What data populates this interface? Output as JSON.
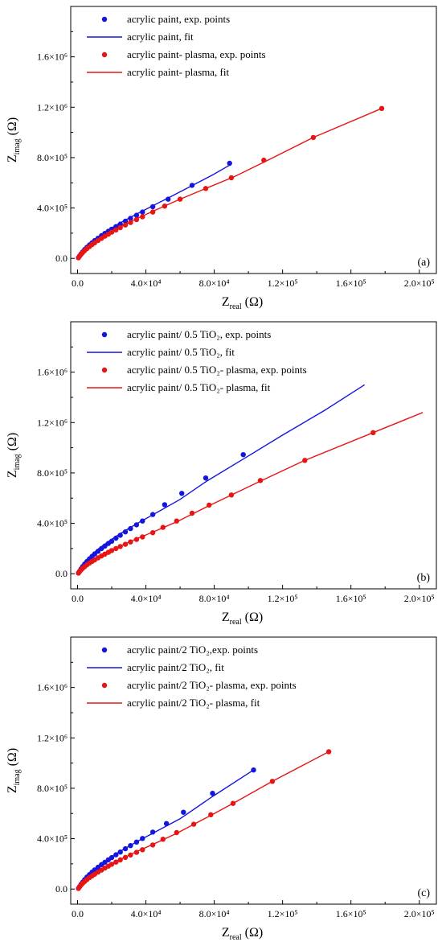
{
  "chart_data": [
    {
      "type": "scatter",
      "panel_label": "(a)",
      "xlabel": {
        "main": "Z",
        "sub": "real",
        "unit": " (Ω)"
      },
      "ylabel": {
        "main": "Z",
        "sub": "imag",
        "unit": " (Ω)"
      },
      "xlim": [
        -4000,
        210000
      ],
      "ylim": [
        -120000,
        2000000
      ],
      "x_ticks": [
        {
          "v": 0,
          "label": "0.0"
        },
        {
          "v": 40000,
          "label": "4.0×10⁴"
        },
        {
          "v": 80000,
          "label": "8.0×10⁴"
        },
        {
          "v": 120000,
          "label": "1.2×10⁵"
        },
        {
          "v": 160000,
          "label": "1.6×10⁵"
        },
        {
          "v": 200000,
          "label": "2.0×10⁵"
        }
      ],
      "y_ticks": [
        {
          "v": 0,
          "label": "0.0"
        },
        {
          "v": 400000,
          "label": "4.0×10⁵"
        },
        {
          "v": 800000,
          "label": "8.0×10⁵"
        },
        {
          "v": 1200000,
          "label": "1.2×10⁶"
        },
        {
          "v": 1600000,
          "label": "1.6×10⁶"
        }
      ],
      "grid": false,
      "legend_position": "top-left",
      "series": [
        {
          "name": "acrylic paint, exp. points",
          "kind": "points",
          "color": "#1515e0",
          "x": [
            500,
            1200,
            2000,
            3000,
            4200,
            5500,
            7000,
            8500,
            10000,
            12000,
            14000,
            16000,
            18000,
            20000,
            22500,
            25000,
            28000,
            31000,
            34500,
            38000,
            44000,
            53000,
            67000,
            89000
          ],
          "y": [
            5000,
            20000,
            35000,
            52000,
            70000,
            88000,
            107000,
            124000,
            141000,
            160000,
            180000,
            198000,
            215000,
            232000,
            252000,
            272000,
            295000,
            318000,
            342000,
            368000,
            410000,
            470000,
            580000,
            755000
          ]
        },
        {
          "name": "acrylic paint, fit",
          "kind": "line",
          "color": "#1515e0",
          "x": [
            0,
            500,
            1500,
            3000,
            5000,
            8000,
            12000,
            18000,
            25000,
            35000,
            45000,
            55000,
            67000,
            79000,
            89000
          ],
          "y": [
            0,
            12000,
            35000,
            62000,
            92000,
            128000,
            170000,
            225000,
            282000,
            355000,
            425000,
            493000,
            578000,
            662000,
            740000
          ]
        },
        {
          "name": "acrylic paint- plasma, exp. points",
          "kind": "points",
          "color": "#e81515",
          "x": [
            500,
            1200,
            2000,
            3000,
            4200,
            5500,
            7000,
            8500,
            10000,
            12000,
            14000,
            16000,
            18000,
            20000,
            22500,
            25000,
            28000,
            31000,
            34500,
            38000,
            44000,
            51000,
            60000,
            75000,
            90000,
            109000,
            138000,
            178000
          ],
          "y": [
            5000,
            18000,
            32000,
            46000,
            62000,
            78000,
            94000,
            110000,
            124000,
            142000,
            159000,
            176000,
            192000,
            208000,
            226000,
            244000,
            265000,
            285000,
            308000,
            330000,
            368000,
            415000,
            470000,
            555000,
            640000,
            780000,
            960000,
            1190000
          ]
        },
        {
          "name": "acrylic paint- plasma, fit",
          "kind": "line",
          "color": "#e81515",
          "x": [
            0,
            500,
            1500,
            3000,
            5000,
            8000,
            12000,
            18000,
            25000,
            35000,
            45000,
            60000,
            75000,
            92000,
            110000,
            138000,
            178000
          ],
          "y": [
            0,
            10000,
            29000,
            52000,
            78000,
            110000,
            147000,
            198000,
            250000,
            318000,
            380000,
            470000,
            555000,
            650000,
            770000,
            960000,
            1190000
          ]
        }
      ]
    },
    {
      "type": "scatter",
      "panel_label": "(b)",
      "xlabel": {
        "main": "Z",
        "sub": "real",
        "unit": " (Ω)"
      },
      "ylabel": {
        "main": "Z",
        "sub": "imag",
        "unit": " (Ω)"
      },
      "xlim": [
        -4000,
        210000
      ],
      "ylim": [
        -120000,
        2000000
      ],
      "x_ticks": [
        {
          "v": 0,
          "label": "0.0"
        },
        {
          "v": 40000,
          "label": "4.0×10⁴"
        },
        {
          "v": 80000,
          "label": "8.0×10⁴"
        },
        {
          "v": 120000,
          "label": "1.2×10⁵"
        },
        {
          "v": 160000,
          "label": "1.6×10⁵"
        },
        {
          "v": 200000,
          "label": "2.0×10⁵"
        }
      ],
      "y_ticks": [
        {
          "v": 0,
          "label": "0.0"
        },
        {
          "v": 400000,
          "label": "4.0×10⁵"
        },
        {
          "v": 800000,
          "label": "8.0×10⁵"
        },
        {
          "v": 1200000,
          "label": "1.2×10⁶"
        },
        {
          "v": 1600000,
          "label": "1.6×10⁶"
        }
      ],
      "grid": false,
      "legend_position": "top-left",
      "series": [
        {
          "name": "acrylic paint/ 0.5 TiO₂, exp. points",
          "kind": "points",
          "color": "#1515e0",
          "x": [
            500,
            1200,
            2000,
            3000,
            4200,
            5500,
            7000,
            8500,
            10000,
            12000,
            14000,
            16000,
            18000,
            20000,
            22500,
            25000,
            28000,
            31000,
            34500,
            38000,
            44000,
            51000,
            61000,
            75000,
            97000
          ],
          "y": [
            5000,
            20000,
            38000,
            57000,
            77000,
            97000,
            118000,
            138000,
            157000,
            178000,
            200000,
            220000,
            240000,
            258000,
            282000,
            305000,
            332000,
            358000,
            388000,
            418000,
            470000,
            548000,
            638000,
            760000,
            945000
          ]
        },
        {
          "name": "acrylic paint/ 0.5 TiO₂, fit",
          "kind": "line",
          "color": "#1515e0",
          "x": [
            0,
            500,
            1500,
            3000,
            5000,
            8000,
            12000,
            18000,
            25000,
            35000,
            45000,
            60000,
            75000,
            97000,
            120000,
            145000,
            168000
          ],
          "y": [
            0,
            15000,
            42000,
            72000,
            106000,
            147000,
            195000,
            255000,
            318000,
            400000,
            475000,
            590000,
            730000,
            910000,
            1100000,
            1300000,
            1500000
          ]
        },
        {
          "name": "acrylic paint/ 0.5 TiO₂- plasma, exp. points",
          "kind": "points",
          "color": "#e81515",
          "x": [
            500,
            1200,
            2000,
            3000,
            4200,
            5500,
            7000,
            8500,
            10000,
            12000,
            14000,
            16000,
            18000,
            20000,
            22500,
            25000,
            28000,
            31000,
            34500,
            38000,
            44000,
            50000,
            58000,
            67000,
            77000,
            90000,
            107000,
            133000,
            173000
          ],
          "y": [
            5000,
            17000,
            30000,
            43000,
            57000,
            71000,
            85000,
            98000,
            110000,
            126000,
            141000,
            156000,
            170000,
            184000,
            200000,
            216000,
            234000,
            252000,
            272000,
            292000,
            326000,
            368000,
            418000,
            480000,
            545000,
            625000,
            740000,
            900000,
            1120000
          ]
        },
        {
          "name": "acrylic paint/ 0.5 TiO₂- plasma, fit",
          "kind": "line",
          "color": "#e81515",
          "x": [
            0,
            500,
            1500,
            3000,
            5000,
            8000,
            12000,
            18000,
            25000,
            35000,
            45000,
            58000,
            77000,
            107000,
            133000,
            173000,
            202000
          ],
          "y": [
            0,
            10000,
            27000,
            48000,
            70000,
            98000,
            130000,
            174000,
            220000,
            280000,
            336000,
            412000,
            540000,
            735000,
            900000,
            1120000,
            1280000
          ]
        }
      ]
    },
    {
      "type": "scatter",
      "panel_label": "(c)",
      "xlabel": {
        "main": "Z",
        "sub": "real",
        "unit": " (Ω)"
      },
      "ylabel": {
        "main": "Z",
        "sub": "imag",
        "unit": " (Ω)"
      },
      "xlim": [
        -4000,
        210000
      ],
      "ylim": [
        -120000,
        2000000
      ],
      "x_ticks": [
        {
          "v": 0,
          "label": "0.0"
        },
        {
          "v": 40000,
          "label": "4.0×10⁴"
        },
        {
          "v": 80000,
          "label": "8.0×10⁴"
        },
        {
          "v": 120000,
          "label": "1.2×10⁵"
        },
        {
          "v": 160000,
          "label": "1.6×10⁵"
        },
        {
          "v": 200000,
          "label": "2.0×10⁵"
        }
      ],
      "y_ticks": [
        {
          "v": 0,
          "label": "0.0"
        },
        {
          "v": 400000,
          "label": "4.0×10⁵"
        },
        {
          "v": 800000,
          "label": "8.0×10⁵"
        },
        {
          "v": 1200000,
          "label": "1.2×10⁶"
        },
        {
          "v": 1600000,
          "label": "1.6×10⁶"
        }
      ],
      "grid": false,
      "legend_position": "top-left",
      "series": [
        {
          "name": "acrylic paint/2 TiO₂,exp. points",
          "kind": "points",
          "color": "#1515e0",
          "x": [
            500,
            1200,
            2000,
            3000,
            4200,
            5500,
            7000,
            8500,
            10000,
            12000,
            14000,
            16000,
            18000,
            20000,
            22500,
            25000,
            28000,
            31000,
            34500,
            38000,
            44000,
            52000,
            62000,
            79000,
            103000
          ],
          "y": [
            5000,
            20000,
            37000,
            55000,
            75000,
            95000,
            115000,
            134000,
            152000,
            173000,
            194000,
            213000,
            232000,
            250000,
            272000,
            294000,
            320000,
            345000,
            373000,
            402000,
            452000,
            520000,
            610000,
            760000,
            945000
          ]
        },
        {
          "name": "acrylic paint/2 TiO₂, fit",
          "kind": "line",
          "color": "#1515e0",
          "x": [
            0,
            500,
            1500,
            3000,
            5000,
            8000,
            12000,
            18000,
            25000,
            35000,
            45000,
            60000,
            79000,
            103000
          ],
          "y": [
            0,
            14000,
            40000,
            68000,
            100000,
            138000,
            182000,
            240000,
            300000,
            378000,
            450000,
            558000,
            735000,
            945000
          ]
        },
        {
          "name": "acrylic paint/2 TiO₂- plasma, exp. points",
          "kind": "points",
          "color": "#e81515",
          "x": [
            500,
            1200,
            2000,
            3000,
            4200,
            5500,
            7000,
            8500,
            10000,
            12000,
            14000,
            16000,
            18000,
            20000,
            22500,
            25000,
            28000,
            31000,
            34500,
            38000,
            44000,
            50000,
            58000,
            68000,
            78000,
            91000,
            114000,
            147000
          ],
          "y": [
            5000,
            18000,
            32000,
            46000,
            61000,
            76000,
            91000,
            105000,
            118000,
            135000,
            151000,
            167000,
            182000,
            197000,
            214000,
            231000,
            251000,
            270000,
            291000,
            312000,
            350000,
            395000,
            448000,
            515000,
            590000,
            680000,
            855000,
            1090000
          ]
        },
        {
          "name": "acrylic paint/2 TiO₂- plasma, fit",
          "kind": "line",
          "color": "#e81515",
          "x": [
            0,
            500,
            1500,
            3000,
            5000,
            8000,
            12000,
            18000,
            25000,
            35000,
            45000,
            58000,
            78000,
            91000,
            114000,
            147000
          ],
          "y": [
            0,
            11000,
            30000,
            52000,
            76000,
            106000,
            140000,
            186000,
            236000,
            300000,
            360000,
            442000,
            585000,
            680000,
            855000,
            1090000
          ]
        }
      ]
    }
  ]
}
